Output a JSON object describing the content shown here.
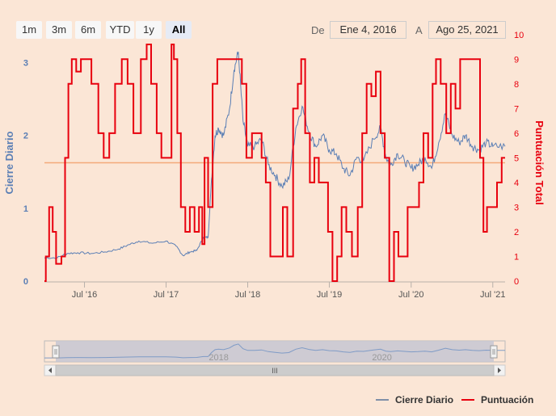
{
  "range_selector": {
    "buttons": [
      {
        "label": "1m",
        "active": false
      },
      {
        "label": "3m",
        "active": false
      },
      {
        "label": "6m",
        "active": false
      },
      {
        "label": "YTD",
        "active": false
      },
      {
        "label": "1y",
        "active": false
      },
      {
        "label": "All",
        "active": true
      }
    ],
    "from_label": "De",
    "from_value": "Ene 4, 2016",
    "to_label": "A",
    "to_value": "Ago 25, 2021"
  },
  "colors": {
    "background": "#fbe6d6",
    "price_series": "#5b7fb5",
    "score_series": "#e8000e",
    "reference_line": "#f4a97a"
  },
  "legend": {
    "items": [
      {
        "name": "Cierre Diario",
        "color": "#7f8fa8"
      },
      {
        "name": "Puntuación",
        "color": "#e8000e"
      }
    ]
  },
  "navigator": {
    "year_labels": [
      "2018",
      "2020"
    ],
    "scrollbar_grip": "III"
  },
  "chart_data": {
    "type": "line",
    "title": "",
    "x_range": [
      "2016-01-04",
      "2021-08-25"
    ],
    "x_tick_labels": [
      "Jul '16",
      "Jul '17",
      "Jul '18",
      "Jul '19",
      "Jul '20",
      "Jul '21"
    ],
    "y_left": {
      "label": "Cierre Diario",
      "ticks": [
        0,
        1,
        2,
        3
      ],
      "range": [
        0,
        3.25
      ]
    },
    "y_right": {
      "label": "Puntuación Total",
      "ticks": [
        0,
        1,
        2,
        3,
        4,
        5,
        6,
        7,
        8,
        9,
        10
      ],
      "range": [
        0,
        9.6
      ]
    },
    "reference_line": {
      "axis": "right",
      "value": 4.8
    },
    "series": [
      {
        "name": "Cierre Diario",
        "axis": "left",
        "points": [
          [
            "2016-01-04",
            0.32
          ],
          [
            "2016-03-01",
            0.32
          ],
          [
            "2016-04-15",
            0.38
          ],
          [
            "2016-06-01",
            0.39
          ],
          [
            "2016-08-01",
            0.38
          ],
          [
            "2016-10-01",
            0.4
          ],
          [
            "2016-12-01",
            0.44
          ],
          [
            "2017-01-15",
            0.5
          ],
          [
            "2017-03-01",
            0.55
          ],
          [
            "2017-05-01",
            0.52
          ],
          [
            "2017-07-01",
            0.55
          ],
          [
            "2017-08-15",
            0.48
          ],
          [
            "2017-09-15",
            0.35
          ],
          [
            "2017-10-15",
            0.4
          ],
          [
            "2017-11-15",
            0.42
          ],
          [
            "2017-12-15",
            0.6
          ],
          [
            "2018-01-05",
            0.6
          ],
          [
            "2018-01-20",
            1.4
          ],
          [
            "2018-02-05",
            2.0
          ],
          [
            "2018-02-20",
            2.1
          ],
          [
            "2018-03-15",
            2.0
          ],
          [
            "2018-04-10",
            2.35
          ],
          [
            "2018-05-01",
            2.9
          ],
          [
            "2018-05-20",
            3.15
          ],
          [
            "2018-06-10",
            2.2
          ],
          [
            "2018-07-01",
            1.85
          ],
          [
            "2018-08-01",
            1.85
          ],
          [
            "2018-09-01",
            1.95
          ],
          [
            "2018-10-01",
            1.6
          ],
          [
            "2018-11-01",
            1.45
          ],
          [
            "2018-12-01",
            1.3
          ],
          [
            "2019-01-01",
            1.4
          ],
          [
            "2019-02-01",
            2.1
          ],
          [
            "2019-03-01",
            2.4
          ],
          [
            "2019-04-01",
            2.05
          ],
          [
            "2019-05-01",
            1.85
          ],
          [
            "2019-06-01",
            2.0
          ],
          [
            "2019-07-01",
            1.8
          ],
          [
            "2019-08-01",
            1.75
          ],
          [
            "2019-09-01",
            1.55
          ],
          [
            "2019-10-01",
            1.45
          ],
          [
            "2019-11-01",
            1.7
          ],
          [
            "2019-12-01",
            1.65
          ],
          [
            "2020-01-15",
            1.95
          ],
          [
            "2020-02-15",
            2.1
          ],
          [
            "2020-03-10",
            1.7
          ],
          [
            "2020-04-01",
            1.6
          ],
          [
            "2020-05-01",
            1.75
          ],
          [
            "2020-06-01",
            1.65
          ],
          [
            "2020-07-01",
            1.55
          ],
          [
            "2020-08-01",
            1.6
          ],
          [
            "2020-09-01",
            1.7
          ],
          [
            "2020-10-01",
            1.55
          ],
          [
            "2020-11-01",
            1.9
          ],
          [
            "2020-12-01",
            2.3
          ],
          [
            "2021-01-01",
            2.0
          ],
          [
            "2021-02-01",
            1.9
          ],
          [
            "2021-03-01",
            2.0
          ],
          [
            "2021-04-01",
            1.85
          ],
          [
            "2021-05-01",
            1.8
          ],
          [
            "2021-06-01",
            1.9
          ],
          [
            "2021-07-01",
            1.85
          ],
          [
            "2021-08-25",
            1.85
          ]
        ]
      },
      {
        "name": "Puntuación",
        "axis": "right",
        "points": [
          [
            "2016-01-04",
            0
          ],
          [
            "2016-01-10",
            1
          ],
          [
            "2016-01-25",
            3
          ],
          [
            "2016-02-10",
            2
          ],
          [
            "2016-02-25",
            0.7
          ],
          [
            "2016-03-20",
            1
          ],
          [
            "2016-04-05",
            5
          ],
          [
            "2016-04-20",
            8
          ],
          [
            "2016-05-05",
            9
          ],
          [
            "2016-05-25",
            8.5
          ],
          [
            "2016-06-15",
            9
          ],
          [
            "2016-08-01",
            8
          ],
          [
            "2016-09-01",
            6
          ],
          [
            "2016-09-25",
            5
          ],
          [
            "2016-10-20",
            6
          ],
          [
            "2016-11-15",
            8
          ],
          [
            "2016-12-15",
            9
          ],
          [
            "2017-01-10",
            8
          ],
          [
            "2017-02-05",
            6
          ],
          [
            "2017-03-10",
            9
          ],
          [
            "2017-04-05",
            9.6
          ],
          [
            "2017-04-25",
            8
          ],
          [
            "2017-05-20",
            6
          ],
          [
            "2017-06-10",
            5
          ],
          [
            "2017-07-10",
            5
          ],
          [
            "2017-07-25",
            9.6
          ],
          [
            "2017-08-05",
            9
          ],
          [
            "2017-08-20",
            6
          ],
          [
            "2017-09-05",
            3
          ],
          [
            "2017-09-25",
            2
          ],
          [
            "2017-10-15",
            3
          ],
          [
            "2017-11-05",
            2
          ],
          [
            "2017-11-25",
            3
          ],
          [
            "2017-12-10",
            1.5
          ],
          [
            "2017-12-20",
            5
          ],
          [
            "2018-01-05",
            3
          ],
          [
            "2018-01-25",
            8
          ],
          [
            "2018-02-15",
            9
          ],
          [
            "2018-03-10",
            9
          ],
          [
            "2018-04-20",
            9
          ],
          [
            "2018-05-20",
            9
          ],
          [
            "2018-06-05",
            8
          ],
          [
            "2018-06-25",
            5
          ],
          [
            "2018-07-20",
            6
          ],
          [
            "2018-08-10",
            6
          ],
          [
            "2018-09-01",
            5
          ],
          [
            "2018-09-20",
            4
          ],
          [
            "2018-10-10",
            1
          ],
          [
            "2018-11-10",
            1
          ],
          [
            "2018-12-05",
            3
          ],
          [
            "2018-12-25",
            1
          ],
          [
            "2019-01-20",
            7
          ],
          [
            "2019-02-10",
            8
          ],
          [
            "2019-02-25",
            9
          ],
          [
            "2019-03-15",
            6
          ],
          [
            "2019-04-05",
            4
          ],
          [
            "2019-04-25",
            5
          ],
          [
            "2019-05-15",
            4
          ],
          [
            "2019-06-05",
            4
          ],
          [
            "2019-06-25",
            2
          ],
          [
            "2019-07-15",
            0
          ],
          [
            "2019-08-05",
            1
          ],
          [
            "2019-08-25",
            3
          ],
          [
            "2019-09-15",
            2
          ],
          [
            "2019-10-10",
            1
          ],
          [
            "2019-11-05",
            3
          ],
          [
            "2019-11-25",
            6
          ],
          [
            "2019-12-15",
            8
          ],
          [
            "2020-01-05",
            7.5
          ],
          [
            "2020-01-25",
            8.5
          ],
          [
            "2020-02-15",
            6
          ],
          [
            "2020-03-05",
            5
          ],
          [
            "2020-03-25",
            0
          ],
          [
            "2020-04-15",
            2
          ],
          [
            "2020-05-05",
            1
          ],
          [
            "2020-05-25",
            1
          ],
          [
            "2020-06-15",
            3
          ],
          [
            "2020-07-10",
            3
          ],
          [
            "2020-08-05",
            4
          ],
          [
            "2020-08-25",
            6
          ],
          [
            "2020-09-15",
            5
          ],
          [
            "2020-10-05",
            8
          ],
          [
            "2020-10-20",
            9
          ],
          [
            "2020-11-10",
            8
          ],
          [
            "2020-12-05",
            6
          ],
          [
            "2020-12-25",
            8
          ],
          [
            "2021-01-15",
            7
          ],
          [
            "2021-02-05",
            9
          ],
          [
            "2021-03-10",
            9
          ],
          [
            "2021-04-05",
            9
          ],
          [
            "2021-05-05",
            5
          ],
          [
            "2021-05-20",
            2
          ],
          [
            "2021-06-05",
            3
          ],
          [
            "2021-06-25",
            3
          ],
          [
            "2021-07-20",
            4
          ],
          [
            "2021-08-10",
            5
          ],
          [
            "2021-08-25",
            5
          ]
        ]
      }
    ]
  }
}
